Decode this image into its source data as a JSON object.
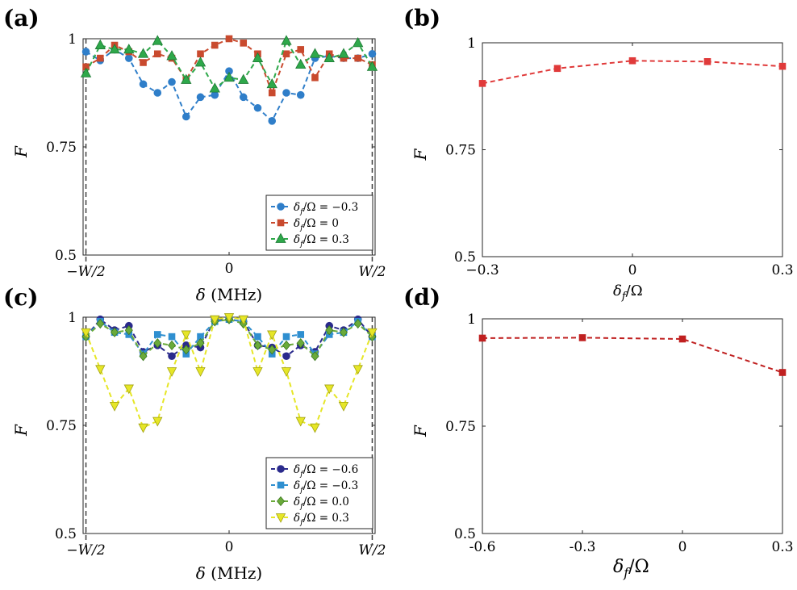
{
  "chart_data": [
    {
      "id": "a",
      "panel_label": "(a)",
      "type": "line",
      "xlabel": "δ (MHz)",
      "ylabel": "F",
      "xlim": [
        -1.02,
        1.02
      ],
      "ylim": [
        0.5,
        1.0
      ],
      "xticks": [
        -1,
        0,
        1
      ],
      "xtick_labels": [
        "−W/2",
        "0",
        "W/2"
      ],
      "yticks": [
        0.5,
        0.75,
        1.0
      ],
      "ytick_labels": [
        "0.5",
        "0.75",
        "1"
      ],
      "vlines": [
        -1,
        1
      ],
      "legend_position": "bottom-right",
      "x": [
        -1,
        -0.9,
        -0.8,
        -0.7,
        -0.6,
        -0.5,
        -0.4,
        -0.3,
        -0.2,
        -0.1,
        0,
        0.1,
        0.2,
        0.3,
        0.4,
        0.5,
        0.6,
        0.7,
        0.8,
        0.9,
        1
      ],
      "series": [
        {
          "name": "δf/Ω = −0.3",
          "legend_main": "δ",
          "legend_sub": "f",
          "legend_rest": "/Ω = −0.3",
          "color": "#2f7ec9",
          "marker": "circle",
          "values": [
            0.97,
            0.95,
            0.975,
            0.955,
            0.895,
            0.875,
            0.9,
            0.82,
            0.865,
            0.87,
            0.925,
            0.865,
            0.84,
            0.81,
            0.875,
            0.87,
            0.955,
            0.96,
            0.955,
            0.955,
            0.965
          ]
        },
        {
          "name": "δf/Ω = 0",
          "legend_main": "δ",
          "legend_sub": "f",
          "legend_rest": "/Ω = 0",
          "color": "#c94a2e",
          "marker": "square",
          "values": [
            0.935,
            0.955,
            0.985,
            0.97,
            0.945,
            0.965,
            0.955,
            0.905,
            0.965,
            0.985,
            1.0,
            0.99,
            0.965,
            0.875,
            0.965,
            0.975,
            0.91,
            0.965,
            0.955,
            0.955,
            0.94
          ]
        },
        {
          "name": "δf/Ω = 0.3",
          "legend_main": "δ",
          "legend_sub": "f",
          "legend_rest": "/Ω = 0.3",
          "color": "#2ea84a",
          "marker": "triangle",
          "values": [
            0.92,
            0.985,
            0.975,
            0.975,
            0.965,
            0.995,
            0.96,
            0.905,
            0.945,
            0.885,
            0.91,
            0.905,
            0.955,
            0.895,
            0.995,
            0.94,
            0.965,
            0.955,
            0.965,
            0.99,
            0.935
          ]
        }
      ]
    },
    {
      "id": "b",
      "panel_label": "(b)",
      "type": "line",
      "xlabel": "δf/Ω",
      "xlabel_main": "δ",
      "xlabel_sub": "f",
      "xlabel_rest": "/Ω",
      "ylabel": "F",
      "xlim": [
        -0.3,
        0.3
      ],
      "ylim": [
        0.5,
        1.0
      ],
      "xticks": [
        -0.3,
        0,
        0.3
      ],
      "xtick_labels": [
        "−0.3",
        "0",
        "0.3"
      ],
      "yticks": [
        0.5,
        0.75,
        1.0
      ],
      "ytick_labels": [
        "0.5",
        "0.75",
        "1"
      ],
      "x": [
        -0.3,
        -0.15,
        0,
        0.15,
        0.3
      ],
      "series": [
        {
          "name": "F",
          "color": "#e03a3a",
          "marker": "square",
          "values": [
            0.905,
            0.94,
            0.958,
            0.956,
            0.945
          ]
        }
      ]
    },
    {
      "id": "c",
      "panel_label": "(c)",
      "type": "line",
      "xlabel": "δ (MHz)",
      "ylabel": "F",
      "xlim": [
        -1.02,
        1.02
      ],
      "ylim": [
        0.5,
        1.0
      ],
      "xticks": [
        -1,
        0,
        1
      ],
      "xtick_labels": [
        "−W/2",
        "0",
        "W/2"
      ],
      "yticks": [
        0.5,
        0.75,
        1.0
      ],
      "ytick_labels": [
        "0.5",
        "0.75",
        "1"
      ],
      "vlines": [
        -1,
        1
      ],
      "legend_position": "bottom-right",
      "x": [
        -1,
        -0.9,
        -0.8,
        -0.7,
        -0.6,
        -0.5,
        -0.4,
        -0.3,
        -0.2,
        -0.1,
        0,
        0.1,
        0.2,
        0.3,
        0.4,
        0.5,
        0.6,
        0.7,
        0.8,
        0.9,
        1
      ],
      "series": [
        {
          "name": "δf/Ω = −0.6",
          "legend_main": "δ",
          "legend_sub": "f",
          "legend_rest": "/Ω = −0.6",
          "color": "#2a2a8c",
          "marker": "circle",
          "values": [
            0.955,
            0.995,
            0.97,
            0.98,
            0.92,
            0.935,
            0.91,
            0.935,
            0.93,
            0.995,
            0.995,
            0.99,
            0.935,
            0.93,
            0.91,
            0.935,
            0.92,
            0.98,
            0.97,
            0.995,
            0.955
          ]
        },
        {
          "name": "δf/Ω = −0.3",
          "legend_main": "δ",
          "legend_sub": "f",
          "legend_rest": "/Ω = −0.3",
          "color": "#2f8fd0",
          "marker": "square",
          "values": [
            0.955,
            0.99,
            0.965,
            0.96,
            0.915,
            0.96,
            0.955,
            0.915,
            0.955,
            0.99,
            0.995,
            0.99,
            0.955,
            0.915,
            0.955,
            0.96,
            0.915,
            0.96,
            0.965,
            0.99,
            0.955
          ]
        },
        {
          "name": "δf/Ω = 0.0",
          "legend_main": "δ",
          "legend_sub": "f",
          "legend_rest": "/Ω = 0.0",
          "color": "#6aaa3a",
          "marker": "diamond",
          "values": [
            0.955,
            0.985,
            0.965,
            0.97,
            0.91,
            0.94,
            0.935,
            0.925,
            0.94,
            0.99,
            0.995,
            0.985,
            0.935,
            0.925,
            0.935,
            0.94,
            0.91,
            0.97,
            0.965,
            0.985,
            0.955
          ]
        },
        {
          "name": "δf/Ω = 0.3",
          "legend_main": "δ",
          "legend_sub": "f",
          "legend_rest": "/Ω = 0.3",
          "color": "#e6e627",
          "marker": "triangle-down",
          "values": [
            0.965,
            0.88,
            0.795,
            0.835,
            0.745,
            0.76,
            0.875,
            0.96,
            0.875,
            0.995,
            1.0,
            0.995,
            0.875,
            0.96,
            0.875,
            0.76,
            0.745,
            0.835,
            0.795,
            0.88,
            0.965
          ]
        }
      ]
    },
    {
      "id": "d",
      "panel_label": "(d)",
      "type": "line",
      "xlabel": "δf/Ω",
      "xlabel_main": "δ",
      "xlabel_sub": "f",
      "xlabel_rest": "/Ω",
      "ylabel": "F",
      "xlim": [
        -0.6,
        0.3
      ],
      "ylim": [
        0.5,
        1.0
      ],
      "xticks": [
        -0.6,
        -0.3,
        0,
        0.3
      ],
      "xtick_labels": [
        "-0.6",
        "-0.3",
        "0",
        "0.3"
      ],
      "yticks": [
        0.5,
        0.75,
        1.0
      ],
      "ytick_labels": [
        "0.5",
        "0.75",
        "1"
      ],
      "x": [
        -0.6,
        -0.3,
        0,
        0.3
      ],
      "series": [
        {
          "name": "F",
          "color": "#c02020",
          "marker": "square",
          "values": [
            0.955,
            0.956,
            0.953,
            0.875
          ]
        }
      ]
    }
  ]
}
